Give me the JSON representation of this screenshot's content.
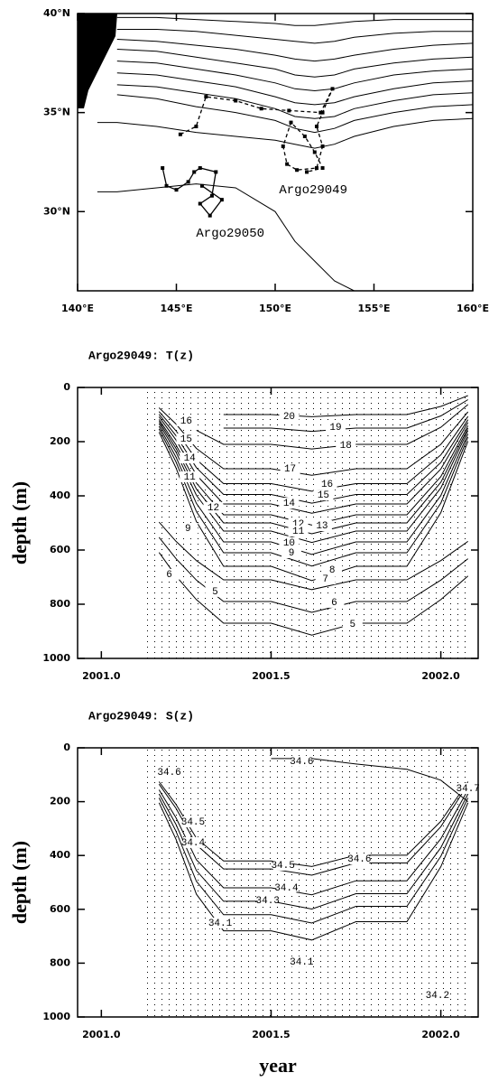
{
  "chart_data": [
    {
      "type": "map",
      "xlim": [
        140,
        160
      ],
      "ylim": [
        26,
        40
      ],
      "xticks": [
        {
          "value": 140,
          "label": "140°E"
        },
        {
          "value": 145,
          "label": "145°E"
        },
        {
          "value": 150,
          "label": "150°E"
        },
        {
          "value": 155,
          "label": "155°E"
        },
        {
          "value": 160,
          "label": "160°E"
        }
      ],
      "yticks": [
        {
          "value": 30,
          "label": "30°N"
        },
        {
          "value": 35,
          "label": "35°N"
        },
        {
          "value": 40,
          "label": "40°N"
        }
      ],
      "contours": {
        "x": [
          141,
          142,
          144,
          146,
          148,
          150,
          151,
          152,
          153,
          154,
          156,
          158,
          160
        ],
        "lines": [
          [
            null,
            39.8,
            39.8,
            39.7,
            39.6,
            39.5,
            39.4,
            39.4,
            39.5,
            39.6,
            39.7,
            39.7,
            39.7
          ],
          [
            null,
            39.2,
            39.2,
            39.1,
            38.9,
            38.7,
            38.6,
            38.5,
            38.6,
            38.8,
            39.0,
            39.1,
            39.1
          ],
          [
            null,
            38.7,
            38.6,
            38.4,
            38.2,
            37.9,
            37.7,
            37.6,
            37.7,
            37.9,
            38.2,
            38.4,
            38.5
          ],
          [
            null,
            38.2,
            38.1,
            37.8,
            37.5,
            37.2,
            36.9,
            36.8,
            36.9,
            37.2,
            37.5,
            37.7,
            37.8
          ],
          [
            null,
            37.6,
            37.5,
            37.2,
            36.9,
            36.5,
            36.2,
            36.1,
            36.2,
            36.5,
            36.9,
            37.1,
            37.2
          ],
          [
            null,
            37.0,
            36.9,
            36.6,
            36.3,
            35.8,
            35.5,
            35.4,
            35.5,
            35.8,
            36.2,
            36.5,
            36.6
          ],
          [
            null,
            36.4,
            36.3,
            36.0,
            35.7,
            35.2,
            34.8,
            34.7,
            34.8,
            35.2,
            35.6,
            35.9,
            36.0
          ],
          [
            null,
            35.9,
            35.7,
            35.3,
            35.0,
            34.6,
            34.2,
            34.0,
            34.2,
            34.6,
            35.0,
            35.3,
            35.4
          ],
          [
            34.5,
            34.5,
            34.3,
            34.0,
            33.8,
            33.6,
            33.4,
            33.2,
            33.4,
            33.8,
            34.3,
            34.6,
            34.7
          ],
          [
            31.0,
            31.0,
            31.2,
            31.4,
            31.2,
            30.0,
            28.5,
            27.5,
            26.5,
            26.0,
            null,
            null,
            null
          ]
        ]
      },
      "series": [
        {
          "name": "Argo29049",
          "color": "#000000",
          "line_style": "dashed",
          "label_x": 150.2,
          "label_y": 31.1,
          "x": [
            145.2,
            146.0,
            146.5,
            148.0,
            149.3,
            150.7,
            152.3,
            152.9,
            152.4,
            152.1,
            152.4,
            152.1,
            151.1,
            150.6,
            150.4,
            150.8,
            151.5,
            152.0,
            152.4,
            151.6
          ],
          "y": [
            33.9,
            34.3,
            35.8,
            35.6,
            35.2,
            35.1,
            35.0,
            36.2,
            35.0,
            34.3,
            33.3,
            32.2,
            32.1,
            32.4,
            33.3,
            34.5,
            33.8,
            33.0,
            32.2,
            32.0
          ]
        },
        {
          "name": "Argo29050",
          "color": "#000000",
          "line_style": "solid",
          "label_x": 146.0,
          "label_y": 28.9,
          "x": [
            144.3,
            144.5,
            145.0,
            145.6,
            145.9,
            146.2,
            147.0,
            146.8,
            146.2,
            146.7,
            147.3,
            146.3
          ],
          "y": [
            32.2,
            31.3,
            31.1,
            31.5,
            32.0,
            32.2,
            32.0,
            30.8,
            30.4,
            29.8,
            30.6,
            31.3
          ]
        }
      ]
    },
    {
      "type": "contour",
      "title": "Argo29049: T(z)",
      "ylabel": "depth (m)",
      "xlim": [
        2000.93,
        2002.11
      ],
      "ylim": [
        1000,
        0
      ],
      "xticks": [
        {
          "value": 2001,
          "label": "2001.0"
        },
        {
          "value": 2001.5,
          "label": "2001.5"
        },
        {
          "value": 2002,
          "label": "2002.0"
        }
      ],
      "yticks": [
        0,
        200,
        400,
        600,
        800,
        1000
      ],
      "contour_x": [
        2001.17,
        2001.22,
        2001.28,
        2001.36,
        2001.5,
        2001.62,
        2001.75,
        2001.9,
        2002.0,
        2002.08
      ],
      "contours": [
        [
          null,
          null,
          null,
          100,
          100,
          108,
          100,
          100,
          70,
          30
        ],
        [
          null,
          null,
          null,
          150,
          150,
          162,
          150,
          150,
          105,
          45
        ],
        [
          null,
          null,
          158,
          210,
          210,
          227,
          210,
          210,
          147,
          63
        ],
        [
          75,
          135,
          225,
          300,
          300,
          324,
          300,
          300,
          210,
          90
        ],
        [
          89,
          160,
          266,
          355,
          355,
          383,
          355,
          355,
          249,
          107
        ],
        [
          99,
          178,
          296,
          395,
          395,
          427,
          395,
          395,
          277,
          119
        ],
        [
          108,
          194,
          323,
          430,
          430,
          464,
          430,
          430,
          301,
          129
        ],
        [
          118,
          212,
          353,
          470,
          470,
          508,
          470,
          470,
          329,
          141
        ],
        [
          125,
          225,
          375,
          500,
          500,
          540,
          500,
          500,
          350,
          150
        ],
        [
          133,
          239,
          398,
          530,
          530,
          572,
          530,
          530,
          371,
          159
        ],
        [
          143,
          257,
          428,
          570,
          570,
          616,
          570,
          570,
          399,
          171
        ],
        [
          153,
          275,
          458,
          610,
          610,
          659,
          610,
          610,
          427,
          183
        ],
        [
          165,
          297,
          495,
          660,
          660,
          713,
          660,
          660,
          462,
          198
        ],
        [
          497,
          568,
          639,
          710,
          710,
          746,
          710,
          710,
          639,
          568
        ],
        [
          553,
          632,
          711,
          790,
          790,
          830,
          790,
          790,
          711,
          632
        ],
        [
          609,
          696,
          783,
          870,
          870,
          914,
          870,
          870,
          783,
          696
        ]
      ],
      "contour_labels": {
        "x": [
          2001.553,
          2001.69,
          2001.72,
          2001.25,
          2001.25,
          2001.26,
          2001.26,
          2001.33,
          2001.255,
          2001.2,
          2001.335,
          2001.556,
          2001.665,
          2001.654,
          2001.553,
          2001.58,
          2001.58,
          2001.65,
          2001.553,
          2001.56,
          2001.68,
          2001.66,
          2001.686,
          2001.74
        ],
        "y": [
          107,
          147,
          213,
          123,
          190,
          260,
          330,
          443,
          520,
          690,
          753,
          300,
          357,
          397,
          427,
          503,
          530,
          510,
          573,
          610,
          673,
          707,
          793,
          873
        ],
        "values": [
          20,
          19,
          18,
          16,
          15,
          14,
          11,
          12,
          9,
          6,
          5,
          17,
          16,
          15,
          14,
          12,
          11,
          13,
          10,
          9,
          8,
          7,
          6,
          5
        ]
      }
    },
    {
      "type": "contour",
      "title": "Argo29049: S(z)",
      "ylabel": "depth (m)",
      "xlabel": "year",
      "xlim": [
        2000.93,
        2002.11
      ],
      "ylim": [
        1000,
        0
      ],
      "xticks": [
        {
          "value": 2001,
          "label": "2001.0"
        },
        {
          "value": 2001.5,
          "label": "2001.5"
        },
        {
          "value": 2002,
          "label": "2002.0"
        }
      ],
      "yticks": [
        0,
        200,
        400,
        600,
        800,
        1000
      ],
      "contour_x": [
        2001.17,
        2001.22,
        2001.28,
        2001.36,
        2001.5,
        2001.62,
        2001.75,
        2001.9,
        2002.0,
        2002.08
      ],
      "contours": [
        [
          null,
          null,
          null,
          null,
          40,
          40,
          60,
          80,
          120,
          200
        ],
        [
          126,
          210,
          336,
          420,
          420,
          441,
          399,
          399,
          273,
          126
        ],
        [
          135,
          225,
          360,
          450,
          450,
          473,
          428,
          428,
          293,
          135
        ],
        [
          156,
          260,
          416,
          520,
          520,
          546,
          494,
          494,
          338,
          156
        ],
        [
          171,
          285,
          456,
          570,
          570,
          599,
          542,
          542,
          371,
          171
        ],
        [
          186,
          310,
          496,
          620,
          620,
          651,
          589,
          589,
          403,
          186
        ],
        [
          204,
          340,
          544,
          680,
          680,
          714,
          646,
          646,
          442,
          204
        ]
      ],
      "contour_labels": {
        "x": [
          2001.59,
          2002.08,
          2001.2,
          2001.27,
          2001.27,
          2001.535,
          2001.76,
          2001.545,
          2001.49,
          2001.35,
          2001.59,
          2001.99
        ],
        "y": [
          50,
          151,
          91,
          275,
          352,
          436,
          413,
          520,
          567,
          651,
          795,
          919
        ],
        "values": [
          34.6,
          34.7,
          34.6,
          34.5,
          34.4,
          34.5,
          34.6,
          34.4,
          34.3,
          34.1,
          34.1,
          34.2
        ]
      }
    }
  ]
}
